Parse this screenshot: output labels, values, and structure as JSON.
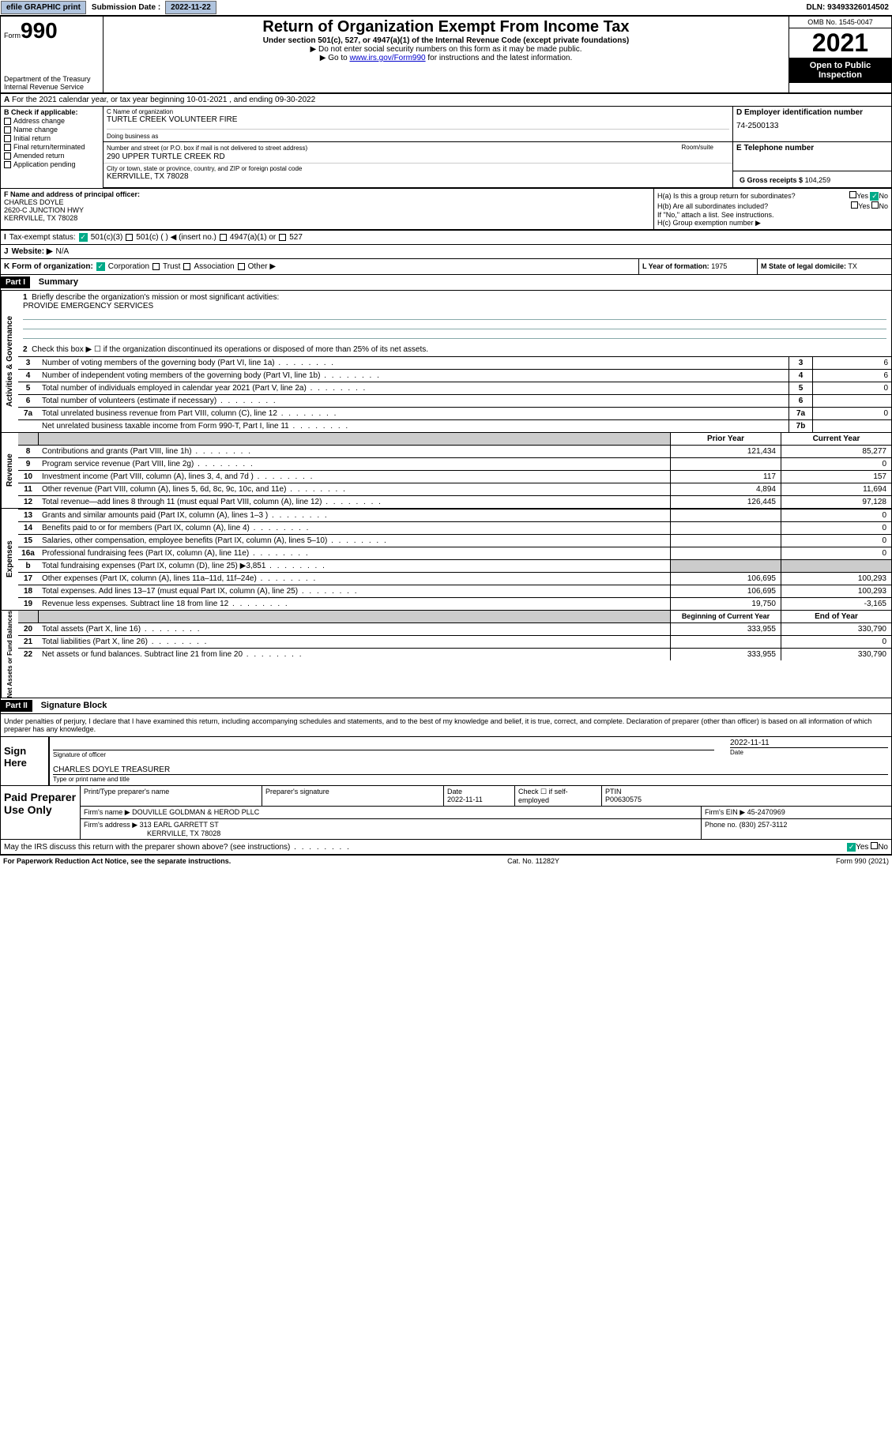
{
  "topbar": {
    "efile": "efile GRAPHIC print",
    "sub_label": "Submission Date :",
    "sub_date": "2022-11-22",
    "dln": "DLN: 93493326014502"
  },
  "header": {
    "form_prefix": "Form",
    "form_num": "990",
    "dept": "Department of the Treasury",
    "irs": "Internal Revenue Service",
    "title": "Return of Organization Exempt From Income Tax",
    "sub1": "Under section 501(c), 527, or 4947(a)(1) of the Internal Revenue Code (except private foundations)",
    "sub2": "Do not enter social security numbers on this form as it may be made public.",
    "sub3_pre": "Go to ",
    "sub3_link": "www.irs.gov/Form990",
    "sub3_post": " for instructions and the latest information.",
    "omb": "OMB No. 1545-0047",
    "year": "2021",
    "open": "Open to Public Inspection"
  },
  "rowA": {
    "text": "For the 2021 calendar year, or tax year beginning 10-01-2021  , and ending 09-30-2022"
  },
  "B": {
    "hdr": "B Check if applicable:",
    "opts": [
      "Address change",
      "Name change",
      "Initial return",
      "Final return/terminated",
      "Amended return",
      "Application pending"
    ]
  },
  "C": {
    "name_lbl": "C Name of organization",
    "name": "TURTLE CREEK VOLUNTEER FIRE",
    "dba_lbl": "Doing business as",
    "addr_lbl": "Number and street (or P.O. box if mail is not delivered to street address)",
    "room_lbl": "Room/suite",
    "addr": "290 UPPER TURTLE CREEK RD",
    "city_lbl": "City or town, state or province, country, and ZIP or foreign postal code",
    "city": "KERRVILLE, TX  78028"
  },
  "D": {
    "lbl": "D Employer identification number",
    "val": "74-2500133"
  },
  "E": {
    "lbl": "E Telephone number"
  },
  "G": {
    "lbl": "G Gross receipts $",
    "val": "104,259"
  },
  "F": {
    "lbl": "F Name and address of principal officer:",
    "name": "CHARLES DOYLE",
    "addr1": "2620-C JUNCTION HWY",
    "addr2": "KERRVILLE, TX  78028"
  },
  "H": {
    "a": "H(a)  Is this a group return for subordinates?",
    "b": "H(b)  Are all subordinates included?",
    "note": "If \"No,\" attach a list. See instructions.",
    "c": "H(c)  Group exemption number ▶",
    "yes": "Yes",
    "no": "No"
  },
  "I": {
    "lbl": "Tax-exempt status:",
    "opt1": "501(c)(3)",
    "opt2": "501(c) (  ) ◀ (insert no.)",
    "opt3": "4947(a)(1) or",
    "opt4": "527"
  },
  "J": {
    "lbl": "Website: ▶",
    "val": "N/A"
  },
  "K": {
    "lbl": "K Form of organization:",
    "opts": [
      "Corporation",
      "Trust",
      "Association",
      "Other ▶"
    ]
  },
  "L": {
    "lbl": "L Year of formation:",
    "val": "1975"
  },
  "M": {
    "lbl": "M State of legal domicile:",
    "val": "TX"
  },
  "part1": {
    "hdr": "Part I",
    "title": "Summary",
    "tab1": "Activities & Governance",
    "tab2": "Revenue",
    "tab3": "Expenses",
    "tab4": "Net Assets or Fund Balances",
    "l1": "Briefly describe the organization's mission or most significant activities:",
    "mission": "PROVIDE EMERGENCY SERVICES",
    "l2": "Check this box ▶ ☐  if the organization discontinued its operations or disposed of more than 25% of its net assets.",
    "rows_gov": [
      {
        "n": "3",
        "d": "Number of voting members of the governing body (Part VI, line 1a)",
        "b": "3",
        "v": "6"
      },
      {
        "n": "4",
        "d": "Number of independent voting members of the governing body (Part VI, line 1b)",
        "b": "4",
        "v": "6"
      },
      {
        "n": "5",
        "d": "Total number of individuals employed in calendar year 2021 (Part V, line 2a)",
        "b": "5",
        "v": "0"
      },
      {
        "n": "6",
        "d": "Total number of volunteers (estimate if necessary)",
        "b": "6",
        "v": ""
      },
      {
        "n": "7a",
        "d": "Total unrelated business revenue from Part VIII, column (C), line 12",
        "b": "7a",
        "v": "0"
      },
      {
        "n": "",
        "d": "Net unrelated business taxable income from Form 990-T, Part I, line 11",
        "b": "7b",
        "v": ""
      }
    ],
    "prior": "Prior Year",
    "curr": "Current Year",
    "rows_rev": [
      {
        "n": "8",
        "d": "Contributions and grants (Part VIII, line 1h)",
        "p": "121,434",
        "c": "85,277"
      },
      {
        "n": "9",
        "d": "Program service revenue (Part VIII, line 2g)",
        "p": "",
        "c": "0"
      },
      {
        "n": "10",
        "d": "Investment income (Part VIII, column (A), lines 3, 4, and 7d )",
        "p": "117",
        "c": "157"
      },
      {
        "n": "11",
        "d": "Other revenue (Part VIII, column (A), lines 5, 6d, 8c, 9c, 10c, and 11e)",
        "p": "4,894",
        "c": "11,694"
      },
      {
        "n": "12",
        "d": "Total revenue—add lines 8 through 11 (must equal Part VIII, column (A), line 12)",
        "p": "126,445",
        "c": "97,128"
      }
    ],
    "rows_exp": [
      {
        "n": "13",
        "d": "Grants and similar amounts paid (Part IX, column (A), lines 1–3 )",
        "p": "",
        "c": "0"
      },
      {
        "n": "14",
        "d": "Benefits paid to or for members (Part IX, column (A), line 4)",
        "p": "",
        "c": "0"
      },
      {
        "n": "15",
        "d": "Salaries, other compensation, employee benefits (Part IX, column (A), lines 5–10)",
        "p": "",
        "c": "0"
      },
      {
        "n": "16a",
        "d": "Professional fundraising fees (Part IX, column (A), line 11e)",
        "p": "",
        "c": "0"
      },
      {
        "n": "b",
        "d": "Total fundraising expenses (Part IX, column (D), line 25) ▶3,851",
        "p": "GREY",
        "c": "GREY"
      },
      {
        "n": "17",
        "d": "Other expenses (Part IX, column (A), lines 11a–11d, 11f–24e)",
        "p": "106,695",
        "c": "100,293"
      },
      {
        "n": "18",
        "d": "Total expenses. Add lines 13–17 (must equal Part IX, column (A), line 25)",
        "p": "106,695",
        "c": "100,293"
      },
      {
        "n": "19",
        "d": "Revenue less expenses. Subtract line 18 from line 12",
        "p": "19,750",
        "c": "-3,165"
      }
    ],
    "beg": "Beginning of Current Year",
    "end": "End of Year",
    "rows_net": [
      {
        "n": "20",
        "d": "Total assets (Part X, line 16)",
        "p": "333,955",
        "c": "330,790"
      },
      {
        "n": "21",
        "d": "Total liabilities (Part X, line 26)",
        "p": "",
        "c": "0"
      },
      {
        "n": "22",
        "d": "Net assets or fund balances. Subtract line 21 from line 20",
        "p": "333,955",
        "c": "330,790"
      }
    ]
  },
  "part2": {
    "hdr": "Part II",
    "title": "Signature Block",
    "decl": "Under penalties of perjury, I declare that I have examined this return, including accompanying schedules and statements, and to the best of my knowledge and belief, it is true, correct, and complete. Declaration of preparer (other than officer) is based on all information of which preparer has any knowledge.",
    "sign": "Sign Here",
    "sig_lbl": "Signature of officer",
    "date_lbl": "Date",
    "date": "2022-11-11",
    "name": "CHARLES DOYLE  TREASURER",
    "name_lbl": "Type or print name and title",
    "paid": "Paid Preparer Use Only",
    "pt_name_lbl": "Print/Type preparer's name",
    "pt_sig_lbl": "Preparer's signature",
    "pt_date_lbl": "Date",
    "pt_date": "2022-11-11",
    "pt_check": "Check ☐ if self-employed",
    "ptin_lbl": "PTIN",
    "ptin": "P00630575",
    "firm_lbl": "Firm's name   ▶",
    "firm": "DOUVILLE GOLDMAN & HEROD PLLC",
    "ein_lbl": "Firm's EIN ▶",
    "ein": "45-2470969",
    "addr_lbl": "Firm's address ▶",
    "addr1": "313 EARL GARRETT ST",
    "addr2": "KERRVILLE, TX  78028",
    "phone_lbl": "Phone no.",
    "phone": "(830) 257-3112",
    "discuss": "May the IRS discuss this return with the preparer shown above? (see instructions)",
    "yes": "Yes",
    "no": "No"
  },
  "footer": {
    "left": "For Paperwork Reduction Act Notice, see the separate instructions.",
    "mid": "Cat. No. 11282Y",
    "right": "Form 990 (2021)"
  }
}
